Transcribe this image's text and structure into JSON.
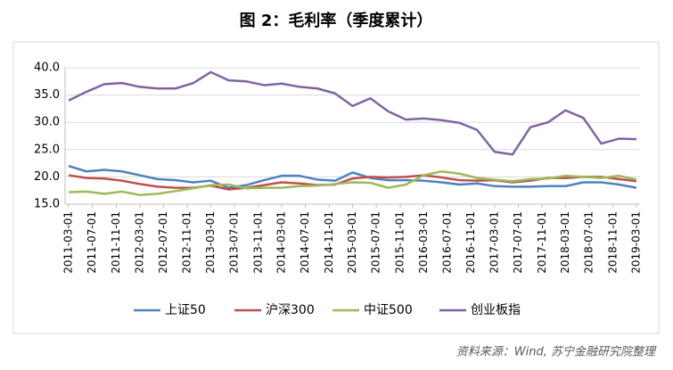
{
  "chart_data": {
    "type": "line",
    "title": "图 2：毛利率（季度累计）",
    "source": "资料来源：Wind, 苏宁金融研究院整理",
    "x": [
      "2011-03-01",
      "2011-06-01",
      "2011-09-01",
      "2011-12-01",
      "2012-03-01",
      "2012-06-01",
      "2012-09-01",
      "2012-12-01",
      "2013-03-01",
      "2013-06-01",
      "2013-09-01",
      "2013-12-01",
      "2014-03-01",
      "2014-06-01",
      "2014-09-01",
      "2014-12-01",
      "2015-03-01",
      "2015-06-01",
      "2015-09-01",
      "2015-12-01",
      "2016-03-01",
      "2016-06-01",
      "2016-09-01",
      "2016-12-01",
      "2017-03-01",
      "2017-06-01",
      "2017-09-01",
      "2017-12-01",
      "2018-03-01",
      "2018-06-01",
      "2018-09-01",
      "2018-12-01",
      "2019-03-01"
    ],
    "xlim": [
      "2011-03-01",
      "2019-03-01"
    ],
    "xticks": [
      "2011-03-01",
      "2011-07-01",
      "2011-11-01",
      "2012-03-01",
      "2012-07-01",
      "2012-11-01",
      "2013-03-01",
      "2013-07-01",
      "2013-11-01",
      "2014-03-01",
      "2014-07-01",
      "2014-11-01",
      "2015-03-01",
      "2015-07-01",
      "2015-11-01",
      "2016-03-01",
      "2016-07-01",
      "2016-11-01",
      "2017-03-01",
      "2017-07-01",
      "2017-11-01",
      "2018-03-01",
      "2018-07-01",
      "2018-11-01",
      "2019-03-01"
    ],
    "ylim": [
      15,
      40
    ],
    "yticks": [
      {
        "value": 15,
        "label": "15.0"
      },
      {
        "value": 20,
        "label": "20.0"
      },
      {
        "value": 25,
        "label": "25.0"
      },
      {
        "value": 30,
        "label": "30.0"
      },
      {
        "value": 35,
        "label": "35.0"
      },
      {
        "value": 40,
        "label": "40.0"
      }
    ],
    "grid": true,
    "legend": "bottom",
    "series": [
      {
        "name": "上证50",
        "color": "#4f81bd",
        "values": [
          22.0,
          21.0,
          21.3,
          21.0,
          20.3,
          19.6,
          19.4,
          19.0,
          19.3,
          18.0,
          18.5,
          19.4,
          20.2,
          20.2,
          19.5,
          19.3,
          20.8,
          19.8,
          19.4,
          19.4,
          19.3,
          19.0,
          18.6,
          18.8,
          18.3,
          18.2,
          18.2,
          18.3,
          18.3,
          19.0,
          19.0,
          18.6,
          18.0
        ]
      },
      {
        "name": "沪深300",
        "color": "#c0504d",
        "values": [
          20.3,
          19.8,
          19.7,
          19.3,
          18.7,
          18.2,
          18.0,
          18.0,
          18.4,
          17.7,
          18.0,
          18.5,
          19.0,
          18.8,
          18.5,
          18.6,
          19.7,
          20.0,
          19.9,
          20.0,
          20.3,
          19.9,
          19.4,
          19.3,
          19.4,
          19.0,
          19.3,
          19.8,
          19.8,
          20.0,
          20.0,
          19.6,
          19.2
        ]
      },
      {
        "name": "中证500",
        "color": "#9bbb59",
        "values": [
          17.2,
          17.3,
          16.9,
          17.3,
          16.7,
          16.9,
          17.4,
          17.9,
          18.5,
          18.6,
          17.9,
          18.0,
          18.0,
          18.3,
          18.4,
          18.7,
          19.0,
          18.9,
          18.0,
          18.6,
          20.3,
          21.0,
          20.6,
          19.8,
          19.5,
          19.2,
          19.6,
          19.7,
          20.2,
          20.0,
          19.8,
          20.2,
          19.5
        ]
      },
      {
        "name": "创业板指",
        "color": "#8064a2",
        "values": [
          34.0,
          35.6,
          37.0,
          37.2,
          36.5,
          36.2,
          36.2,
          37.2,
          39.2,
          37.7,
          37.5,
          36.8,
          37.1,
          36.5,
          36.2,
          35.3,
          33.0,
          34.4,
          32.0,
          30.5,
          30.7,
          30.4,
          29.9,
          28.6,
          24.6,
          24.1,
          29.1,
          30.0,
          32.2,
          30.8,
          26.1,
          27.0,
          26.9
        ]
      }
    ]
  }
}
